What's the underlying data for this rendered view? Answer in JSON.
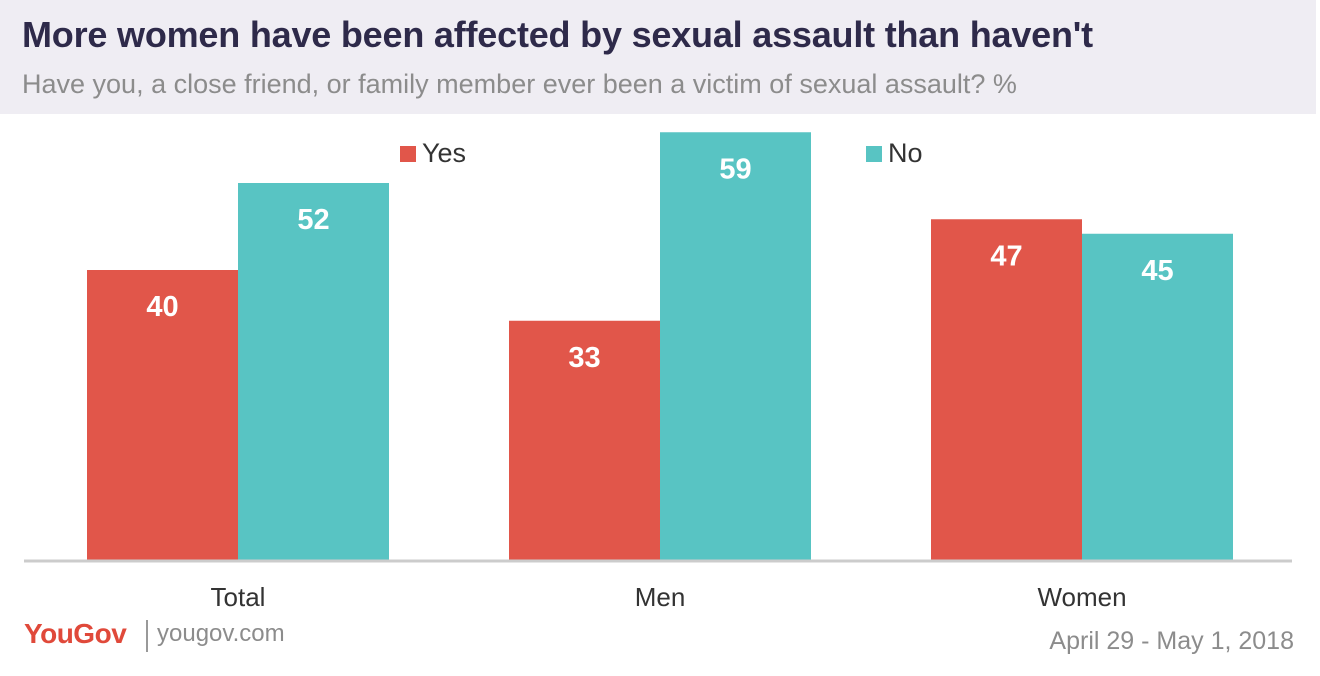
{
  "header": {
    "title": "More women have been affected by sexual assault than haven't",
    "subtitle": "Have you, a close friend, or family member ever been a victim of sexual assault? %"
  },
  "chart_data": {
    "type": "bar",
    "categories": [
      "Total",
      "Men",
      "Women"
    ],
    "series": [
      {
        "name": "Yes",
        "values": [
          40,
          33,
          47
        ],
        "color": "#e1564a"
      },
      {
        "name": "No",
        "values": [
          52,
          59,
          45
        ],
        "color": "#58c4c3"
      }
    ],
    "ylim": [
      0,
      60
    ],
    "grid": false,
    "legend": "top-center",
    "data_labels": true
  },
  "footer": {
    "logo": "YouGov",
    "site": "yougov.com",
    "date": "April 29 - May 1, 2018"
  }
}
